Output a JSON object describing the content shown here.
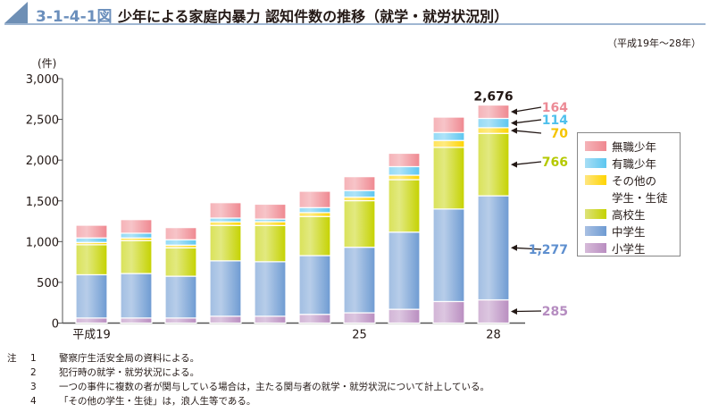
{
  "header": {
    "figure_number": "3-1-4-1図",
    "title": "少年による家庭内暴力 認知件数の推移（就学・就労状況別）",
    "period": "（平成19年～28年）"
  },
  "chart_data": {
    "type": "bar",
    "stacked": true,
    "title": "少年による家庭内暴力 認知件数の推移（就学・就労状況別）",
    "ylabel": "(件)",
    "ylim": [
      0,
      3000
    ],
    "yticks": [
      0,
      500,
      1000,
      1500,
      2000,
      2500,
      3000
    ],
    "ytick_labels": [
      "0",
      "500",
      "1,000",
      "1,500",
      "2,000",
      "2,500",
      "3,000"
    ],
    "categories": [
      "平成19",
      "20",
      "21",
      "22",
      "23",
      "24",
      "25",
      "26",
      "27",
      "28"
    ],
    "xtick_labels": [
      {
        "index": 0,
        "label": "平成19"
      },
      {
        "index": 6,
        "label": "25"
      },
      {
        "index": 9,
        "label": "28"
      }
    ],
    "series": [
      {
        "name": "小学生",
        "color": "#b98dc0",
        "values": [
          62,
          62,
          62,
          84,
          84,
          107,
          126,
          169,
          264,
          285
        ]
      },
      {
        "name": "中学生",
        "color": "#6e9bd2",
        "values": [
          531,
          546,
          513,
          680,
          669,
          721,
          805,
          947,
          1136,
          1277
        ]
      },
      {
        "name": "高校生",
        "color": "#c5d200",
        "values": [
          368,
          404,
          349,
          434,
          444,
          480,
          571,
          644,
          757,
          766
        ]
      },
      {
        "name": "その他の学生・生徒",
        "color": "#ffd400",
        "values": [
          29,
          33,
          33,
          44,
          47,
          48,
          44,
          55,
          84,
          70
        ]
      },
      {
        "name": "有職少年",
        "color": "#5cc6f0",
        "values": [
          55,
          58,
          66,
          47,
          33,
          61,
          80,
          105,
          98,
          114
        ]
      },
      {
        "name": "無職少年",
        "color": "#ef8890",
        "values": [
          156,
          167,
          149,
          189,
          182,
          201,
          171,
          164,
          189,
          164
        ]
      }
    ],
    "total_label": {
      "index": 9,
      "label": "2,676"
    },
    "annotations": [
      {
        "series": "無職少年",
        "label": "164",
        "color": "#ec8a95"
      },
      {
        "series": "有職少年",
        "label": "114",
        "color": "#4fc0ec"
      },
      {
        "series": "その他の学生・生徒",
        "label": "70",
        "color": "#f5c400"
      },
      {
        "series": "高校生",
        "label": "766",
        "color": "#b5c900"
      },
      {
        "series": "中学生",
        "label": "1,277",
        "color": "#5e8fcf"
      },
      {
        "series": "小学生",
        "label": "285",
        "color": "#b58cc0"
      }
    ],
    "legend": {
      "placement": "right",
      "items": [
        "無職少年",
        "有職少年",
        "その他の学生・生徒",
        "高校生",
        "中学生",
        "小学生"
      ]
    }
  },
  "legend_labels": {
    "unemployed": "無職少年",
    "employed": "有職少年",
    "other_line1": "その他の",
    "other_line2": "学生・生徒",
    "high": "高校生",
    "middle": "中学生",
    "elementary": "小学生"
  },
  "notes": {
    "prefix": "注",
    "items": [
      {
        "n": "1",
        "text": "警察庁生活安全局の資料による。"
      },
      {
        "n": "2",
        "text": "犯行時の就学・就労状況による。"
      },
      {
        "n": "3",
        "text": "一つの事件に複数の者が関与している場合は，主たる関与者の就学・就労状況について計上している。"
      },
      {
        "n": "4",
        "text": "「その他の学生・生徒」は，浪人生等である。"
      }
    ]
  }
}
